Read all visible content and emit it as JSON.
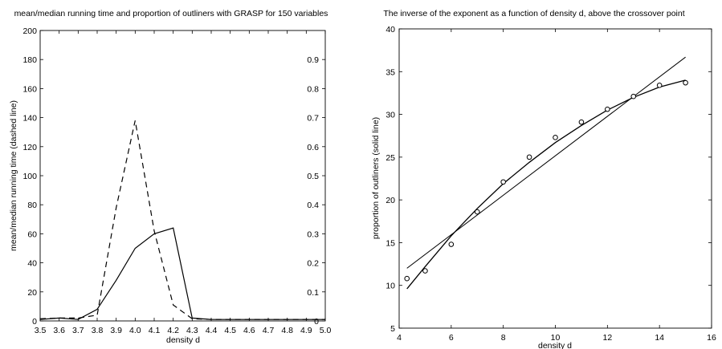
{
  "chart_data": [
    {
      "type": "line",
      "title": "mean/median running time and proportion of outliners with GRASP for 150 variables",
      "xlabel": "density d",
      "ylabel": "mean/median running time (dashed line)",
      "xlim": [
        3.5,
        5.0
      ],
      "ylim": [
        0,
        200
      ],
      "y2lim": [
        0,
        1.0
      ],
      "grid": false,
      "x_ticks": [
        "3.5",
        "3.6",
        "3.7",
        "3.8",
        "3.9",
        "4.0",
        "4.1",
        "4.2",
        "4.3",
        "4.4",
        "4.5",
        "4.6",
        "4.7",
        "4.8",
        "4.9",
        "5.0"
      ],
      "y_ticks": [
        "0",
        "20",
        "40",
        "60",
        "80",
        "100",
        "120",
        "140",
        "160",
        "180",
        "200"
      ],
      "y2_ticks": [
        "0",
        "0.1",
        "0.2",
        "0.3",
        "0.4",
        "0.5",
        "0.6",
        "0.7",
        "0.8",
        "0.9"
      ],
      "series": [
        {
          "style": "dashed",
          "axis": "left",
          "x": [
            3.5,
            3.6,
            3.7,
            3.8,
            3.9,
            4.0,
            4.1,
            4.2,
            4.3,
            4.4,
            4.5,
            4.6,
            4.7,
            4.8,
            4.9,
            5.0
          ],
          "y": [
            1.5,
            2,
            2,
            4,
            78,
            138,
            62,
            11,
            1.5,
            1,
            1,
            1,
            1,
            1,
            1,
            1
          ]
        },
        {
          "style": "solid",
          "axis": "right",
          "x": [
            3.5,
            3.6,
            3.7,
            3.8,
            3.9,
            4.0,
            4.1,
            4.2,
            4.3,
            4.4,
            4.5,
            4.6,
            4.7,
            4.8,
            4.9,
            5.0
          ],
          "y": [
            0.005,
            0.01,
            0.005,
            0.04,
            0.14,
            0.25,
            0.3,
            0.32,
            0.01,
            0.005,
            0.005,
            0.005,
            0.005,
            0.005,
            0.005,
            0.005
          ]
        }
      ]
    },
    {
      "type": "scatter",
      "title": "The inverse of the exponent as a function of density d, above the crossover point",
      "xlabel": "density d",
      "ylabel": "proportion of outliners (solid line)",
      "xlim": [
        4,
        16
      ],
      "ylim": [
        5,
        40
      ],
      "grid": false,
      "x_ticks": [
        "4",
        "6",
        "8",
        "10",
        "12",
        "14",
        "16"
      ],
      "y_ticks": [
        "5",
        "10",
        "15",
        "20",
        "25",
        "30",
        "35",
        "40"
      ],
      "points": {
        "x": [
          4.3,
          5,
          6,
          7,
          8,
          9,
          10,
          11,
          12,
          13,
          14,
          15
        ],
        "y": [
          10.8,
          11.7,
          14.8,
          18.6,
          22.1,
          25.0,
          27.3,
          29.1,
          30.6,
          32.1,
          33.4,
          33.7
        ]
      },
      "lines": [
        {
          "style": "solid",
          "kind": "linear-fit",
          "x": [
            4.3,
            15
          ],
          "y": [
            12.0,
            36.7
          ]
        },
        {
          "style": "solid",
          "kind": "curve-fit",
          "x": [
            4.3,
            5,
            6,
            7,
            8,
            9,
            10,
            11,
            12,
            13,
            14,
            15
          ],
          "y": [
            9.6,
            12.2,
            15.8,
            19.0,
            21.9,
            24.4,
            26.7,
            28.7,
            30.5,
            32.0,
            33.2,
            34.0
          ]
        }
      ]
    }
  ]
}
